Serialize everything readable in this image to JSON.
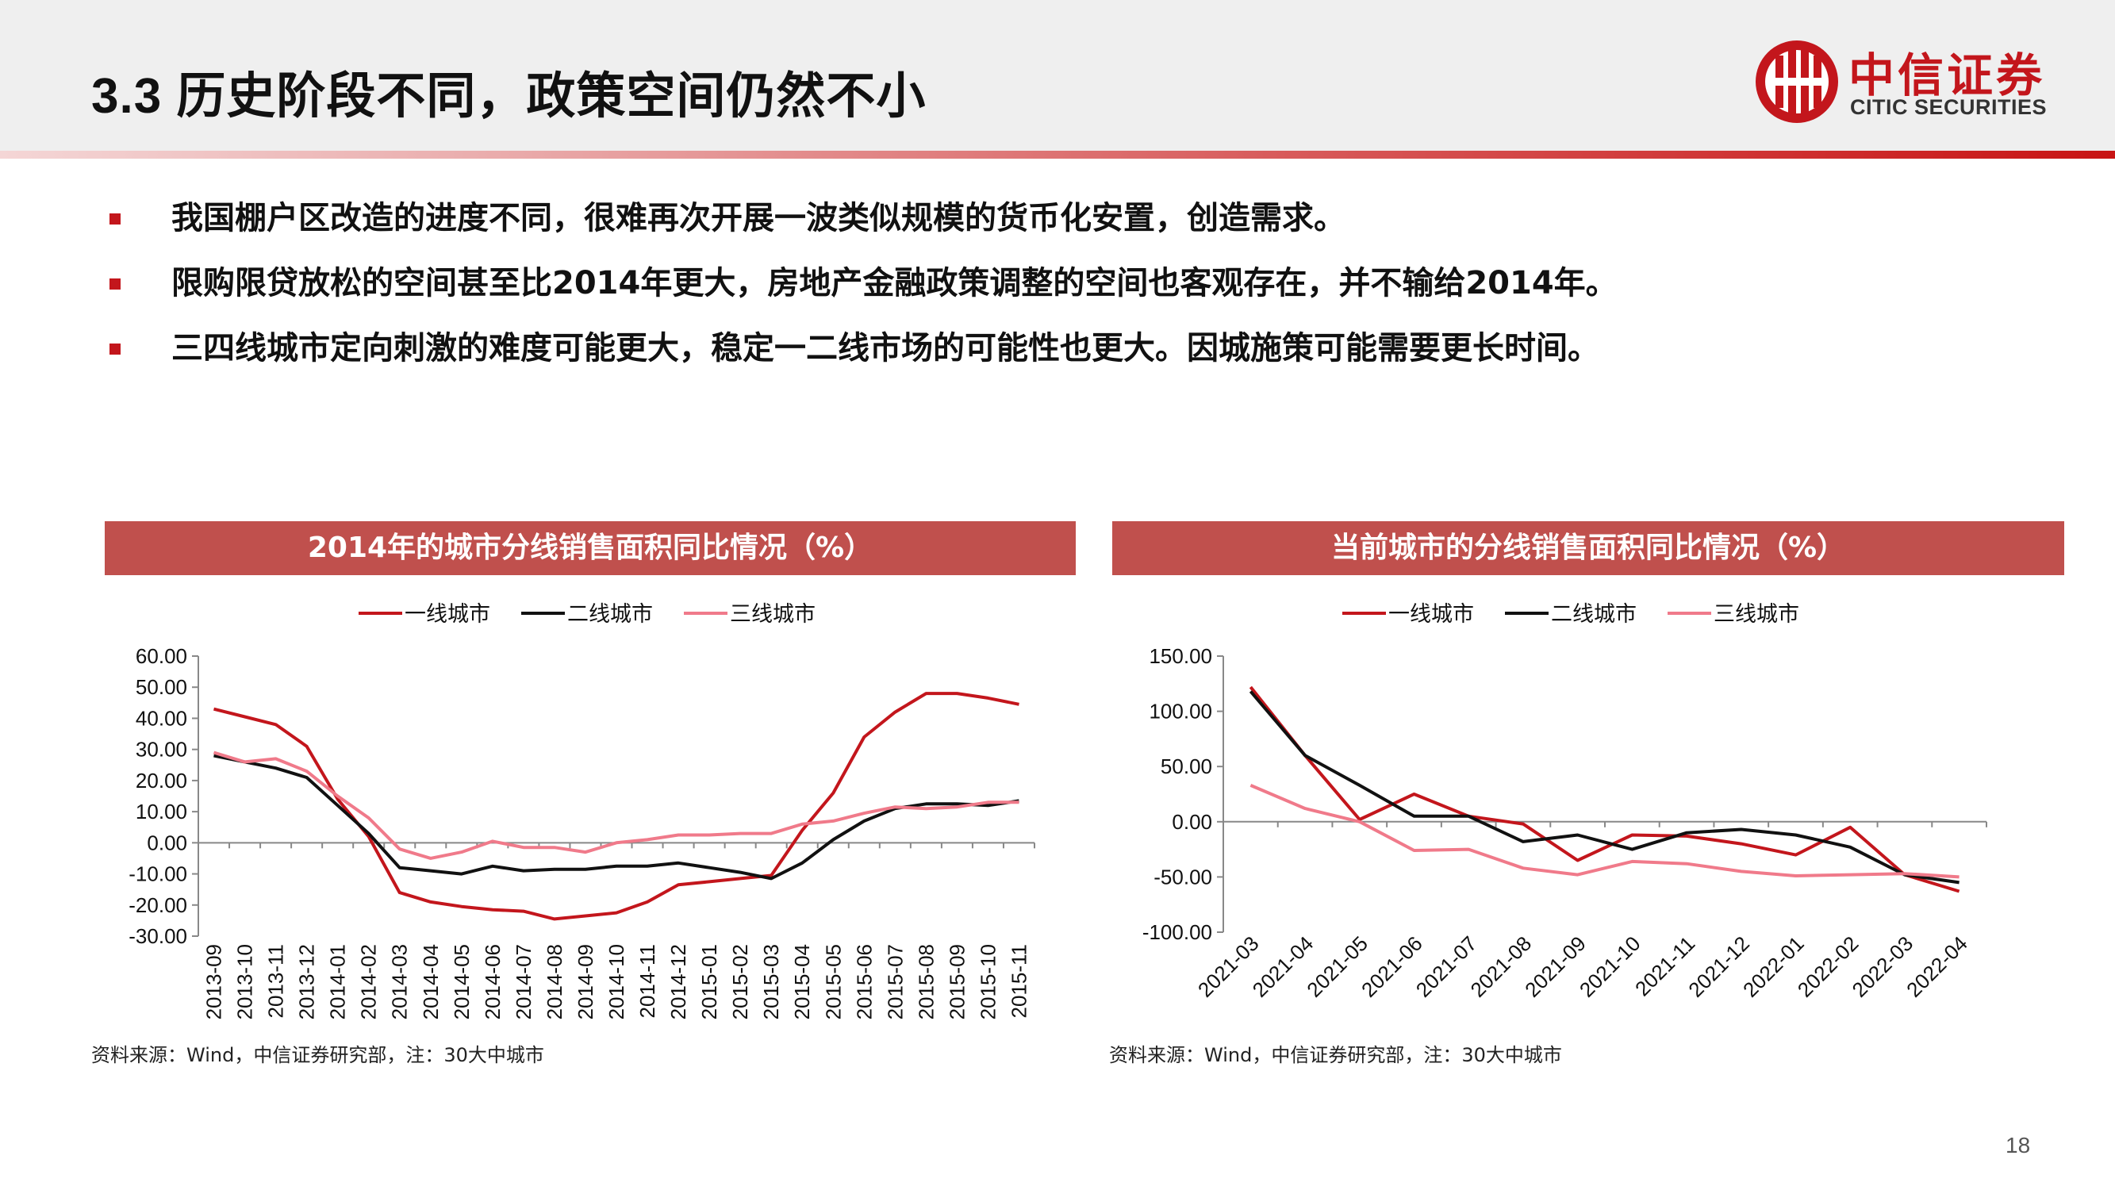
{
  "header": {
    "title": "3.3 历史阶段不同，政策空间仍然不小",
    "logo_cn": "中信证券",
    "logo_en": "CITIC SECURITIES"
  },
  "bullets": [
    "我国棚户区改造的进度不同，很难再次开展一波类似规模的货币化安置，创造需求。",
    "限购限贷放松的空间甚至比2014年更大，房地产金融政策调整的空间也客观存在，并不输给2014年。",
    "三四线城市定向刺激的难度可能更大，稳定一二线市场的可能性也更大。因城施策可能需要更长时间。"
  ],
  "colors": {
    "accent": "#c3161c",
    "chart_header": "#c0504d",
    "tier1": "#c3161c",
    "tier2": "#111111",
    "tier3": "#f07a8a"
  },
  "chart_data": [
    {
      "type": "line",
      "title": "2014年的城市分线销售面积同比情况（%）",
      "x": [
        "2013-09",
        "2013-10",
        "2013-11",
        "2013-12",
        "2014-01",
        "2014-02",
        "2014-03",
        "2014-04",
        "2014-05",
        "2014-06",
        "2014-07",
        "2014-08",
        "2014-09",
        "2014-10",
        "2014-11",
        "2014-12",
        "2015-01",
        "2015-02",
        "2015-03",
        "2015-04",
        "2015-05",
        "2015-06",
        "2015-07",
        "2015-08",
        "2015-09",
        "2015-10",
        "2015-11"
      ],
      "series": [
        {
          "name": "一线城市",
          "color": "#c3161c",
          "values": [
            43,
            40.5,
            38,
            31,
            14,
            2,
            -16,
            -19,
            -20.5,
            -21.5,
            -22,
            -24.5,
            -23.5,
            -22.5,
            -19,
            -13.5,
            -12.5,
            -11.5,
            -10.5,
            4,
            16,
            34,
            42,
            48,
            48,
            46.5,
            44.5
          ]
        },
        {
          "name": "二线城市",
          "color": "#111111",
          "values": [
            28,
            26,
            24,
            21,
            12,
            3,
            -8,
            -9,
            -10,
            -7.5,
            -9,
            -8.5,
            -8.5,
            -7.5,
            -7.5,
            -6.5,
            -8,
            -9.5,
            -11.5,
            -6.5,
            1,
            7,
            11,
            12.5,
            12.5,
            12,
            13.5
          ]
        },
        {
          "name": "三线城市",
          "color": "#f07a8a",
          "values": [
            29,
            26,
            27,
            23,
            15,
            8,
            -2,
            -5,
            -3,
            0.5,
            -1.5,
            -1.5,
            -3,
            0,
            1,
            2.5,
            2.5,
            3,
            3,
            6,
            7,
            9.5,
            11.5,
            11,
            11.5,
            13,
            13
          ]
        }
      ],
      "y_ticks": [
        "60.00",
        "50.00",
        "40.00",
        "30.00",
        "20.00",
        "10.00",
        "0.00",
        "-10.00",
        "-20.00",
        "-30.00"
      ],
      "ylim": [
        -30,
        60
      ],
      "legend": "top",
      "source": "资料来源：Wind，中信证券研究部，注：30大中城市"
    },
    {
      "type": "line",
      "title": "当前城市的分线销售面积同比情况（%）",
      "x": [
        "2021-03",
        "2021-04",
        "2021-05",
        "2021-06",
        "2021-07",
        "2021-08",
        "2021-09",
        "2021-10",
        "2021-11",
        "2021-12",
        "2022-01",
        "2022-02",
        "2022-03",
        "2022-04"
      ],
      "series": [
        {
          "name": "一线城市",
          "color": "#c3161c",
          "values": [
            122,
            60,
            2,
            25,
            5,
            -2,
            -35,
            -12,
            -13,
            -20,
            -30,
            -5,
            -48,
            -63
          ]
        },
        {
          "name": "二线城市",
          "color": "#111111",
          "values": [
            118,
            60,
            33,
            5,
            5,
            -18,
            -12,
            -25,
            -10,
            -7,
            -12,
            -23,
            -48,
            -55
          ]
        },
        {
          "name": "三线城市",
          "color": "#f07a8a",
          "values": [
            33,
            12,
            0,
            -26,
            -25,
            -42,
            -48,
            -36,
            -38,
            -45,
            -49,
            -48,
            -47,
            -50
          ]
        }
      ],
      "y_ticks": [
        "150.00",
        "100.00",
        "50.00",
        "0.00",
        "-50.00",
        "-100.00"
      ],
      "ylim": [
        -100,
        150
      ],
      "legend": "top",
      "source": "资料来源：Wind，中信证券研究部，注：30大中城市"
    }
  ],
  "page_number": "18"
}
